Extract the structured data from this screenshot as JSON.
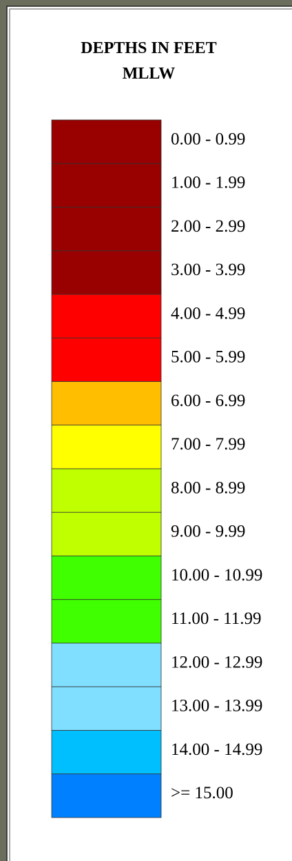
{
  "legend": {
    "title": [
      "DEPTHS IN FEET",
      "MLLW"
    ],
    "items": [
      {
        "label": "0.00 - 0.99",
        "color": "#990000"
      },
      {
        "label": "1.00 - 1.99",
        "color": "#990000"
      },
      {
        "label": "2.00 - 2.99",
        "color": "#990000"
      },
      {
        "label": "3.00 - 3.99",
        "color": "#990000"
      },
      {
        "label": "4.00 - 4.99",
        "color": "#ff0000"
      },
      {
        "label": "5.00 - 5.99",
        "color": "#ff0000"
      },
      {
        "label": "6.00 - 6.99",
        "color": "#ffbf00"
      },
      {
        "label": "7.00 - 7.99",
        "color": "#ffff00"
      },
      {
        "label": "8.00 - 8.99",
        "color": "#bfff00"
      },
      {
        "label": "9.00 - 9.99",
        "color": "#bfff00"
      },
      {
        "label": "10.00 - 10.99",
        "color": "#40ff00"
      },
      {
        "label": "11.00 - 11.99",
        "color": "#40ff00"
      },
      {
        "label": "12.00 - 12.99",
        "color": "#80dfff"
      },
      {
        "label": "13.00 - 13.99",
        "color": "#80dfff"
      },
      {
        "label": "14.00 - 14.99",
        "color": "#00bfff"
      },
      {
        "label": ">= 15.00",
        "color": "#0080ff"
      }
    ]
  }
}
